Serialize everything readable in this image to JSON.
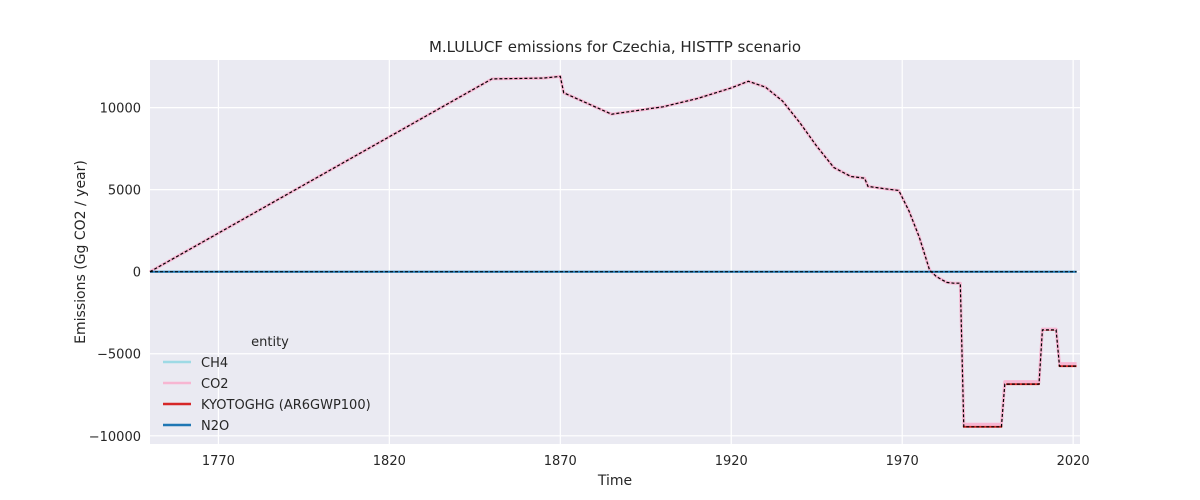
{
  "chart_data": {
    "type": "line",
    "title": "M.LULUCF emissions for Czechia, HISTTP scenario",
    "xlabel": "Time",
    "ylabel": "Emissions (Gg CO2 / year)",
    "xlim": [
      1750,
      2022
    ],
    "ylim": [
      -10500,
      12900
    ],
    "xticks": [
      1770,
      1820,
      1870,
      1920,
      1970,
      2020
    ],
    "yticks": [
      -10000,
      -5000,
      0,
      5000,
      10000
    ],
    "ytick_labels": [
      "−10000",
      "−5000",
      "0",
      "5000",
      "10000"
    ],
    "grid": true,
    "legend": {
      "title": "entity",
      "placement": "lower-left"
    },
    "series": [
      {
        "name": "CH4",
        "color": "#9edae5",
        "x": [
          1750,
          2021
        ],
        "y": [
          0,
          0
        ]
      },
      {
        "name": "CO2",
        "color": "#f7b6d2",
        "x": [
          1750,
          1850,
          1865,
          1870,
          1871,
          1885,
          1900,
          1910,
          1920,
          1925,
          1930,
          1935,
          1940,
          1945,
          1950,
          1955,
          1959,
          1960,
          1965,
          1969,
          1972,
          1975,
          1978,
          1980,
          1983,
          1985,
          1987,
          1988,
          1989,
          1999,
          2000,
          2010,
          2011,
          2015,
          2016,
          2021
        ],
        "y": [
          0,
          11750,
          11800,
          11900,
          10900,
          9600,
          10050,
          10550,
          11200,
          11600,
          11250,
          10400,
          9100,
          7650,
          6350,
          5800,
          5700,
          5200,
          5050,
          4950,
          3700,
          2100,
          100,
          -300,
          -650,
          -700,
          -700,
          -9300,
          -9300,
          -9300,
          -6700,
          -6700,
          -3500,
          -3500,
          -5600,
          -5600
        ]
      },
      {
        "name": "KYOTOGHG (AR6GWP100)",
        "color": "#d62728",
        "x": [
          1750,
          1850,
          1865,
          1870,
          1871,
          1885,
          1900,
          1910,
          1920,
          1925,
          1930,
          1935,
          1940,
          1945,
          1950,
          1955,
          1959,
          1960,
          1965,
          1969,
          1972,
          1975,
          1978,
          1980,
          1983,
          1985,
          1987,
          1988,
          1989,
          1999,
          2000,
          2010,
          2011,
          2015,
          2016,
          2021
        ],
        "y": [
          0,
          11750,
          11800,
          11900,
          10900,
          9600,
          10050,
          10550,
          11200,
          11600,
          11250,
          10400,
          9100,
          7650,
          6350,
          5800,
          5700,
          5200,
          5050,
          4950,
          3700,
          2100,
          100,
          -300,
          -650,
          -700,
          -700,
          -9450,
          -9450,
          -9450,
          -6850,
          -6850,
          -3550,
          -3550,
          -5750,
          -5750
        ]
      },
      {
        "name": "N2O",
        "color": "#1f77b4",
        "x": [
          1750,
          2021
        ],
        "y": [
          0,
          0
        ]
      }
    ]
  }
}
